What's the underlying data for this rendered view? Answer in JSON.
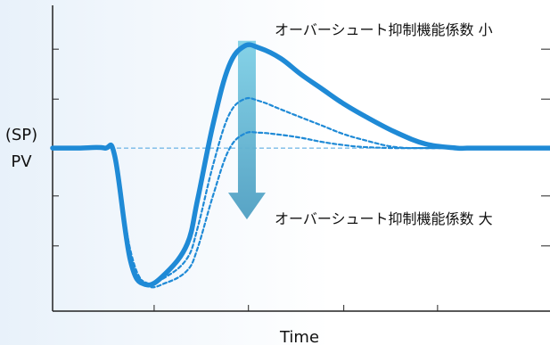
{
  "chart_data": {
    "type": "line",
    "xlabel": "Time",
    "ylabel_lines": [
      "(SP)",
      "PV"
    ],
    "setpoint": 0,
    "x": [
      0,
      5,
      10,
      12,
      15,
      18,
      22,
      26,
      28,
      31,
      34,
      37,
      40,
      44,
      48,
      52,
      56,
      60,
      66,
      72,
      78,
      80,
      84,
      90,
      96
    ],
    "series": [
      {
        "name": "solid",
        "values": [
          0,
          0,
          0,
          -0.4,
          -5.5,
          -6.7,
          -6.1,
          -4.7,
          -2.5,
          1.2,
          4.0,
          5.0,
          4.9,
          4.4,
          3.6,
          2.9,
          2.2,
          1.6,
          0.8,
          0.2,
          0,
          0,
          0,
          0,
          0
        ]
      },
      {
        "name": "dotted-medium",
        "values": [
          0,
          0,
          0,
          -0.3,
          -5.3,
          -6.6,
          -6.3,
          -5.4,
          -3.9,
          -0.8,
          1.6,
          2.4,
          2.3,
          1.9,
          1.5,
          1.1,
          0.7,
          0.4,
          0.05,
          0,
          0,
          0,
          0,
          0,
          0
        ]
      },
      {
        "name": "dotted-large",
        "values": [
          0,
          0,
          0,
          -0.3,
          -5.0,
          -6.7,
          -6.6,
          -6.0,
          -4.9,
          -2.3,
          -0.1,
          0.7,
          0.75,
          0.65,
          0.5,
          0.3,
          0.15,
          0.05,
          0,
          0,
          0,
          0,
          0,
          0,
          0
        ]
      }
    ],
    "xlim": [
      0,
      96
    ],
    "ylim": [
      -8,
      7
    ],
    "annotations": {
      "top": "オーバーシュート抑制機能係数 小",
      "bottom": "オーバーシュート抑制機能係数 大"
    },
    "arrow": {
      "from": 5.0,
      "to": -3.5
    }
  },
  "colors": {
    "line": "#1f8ad6",
    "setpoint": "#4aa3df",
    "axis": "#222222",
    "arrow_top": "#7fd0e6",
    "arrow_bottom": "#52a7c9"
  }
}
